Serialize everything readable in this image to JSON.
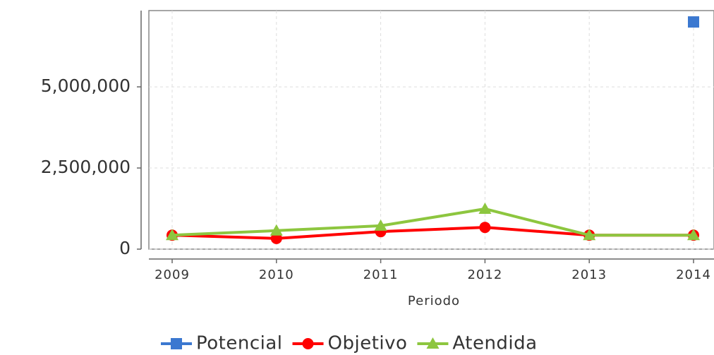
{
  "chart_data": {
    "type": "line",
    "x_label": "Periodo",
    "categories": [
      "2009",
      "2010",
      "2011",
      "2012",
      "2013",
      "2014"
    ],
    "series": [
      {
        "name": "Potencial",
        "color": "#3b78d0",
        "marker": "square",
        "values": [
          null,
          null,
          null,
          null,
          null,
          7000000
        ]
      },
      {
        "name": "Objetivo",
        "color": "#ff0000",
        "marker": "circle",
        "values": [
          430000,
          330000,
          540000,
          670000,
          430000,
          430000
        ]
      },
      {
        "name": "Atendida",
        "color": "#8dc63f",
        "marker": "triangle",
        "values": [
          430000,
          570000,
          720000,
          1240000,
          430000,
          430000
        ]
      }
    ],
    "ylim": [
      0,
      7350000
    ],
    "yticks": [
      0,
      {
        "value": 2500000,
        "label": "2,500,000"
      },
      {
        "value": 5000000,
        "label": "5,000,000"
      }
    ],
    "grid": true,
    "legend": "bottom"
  }
}
